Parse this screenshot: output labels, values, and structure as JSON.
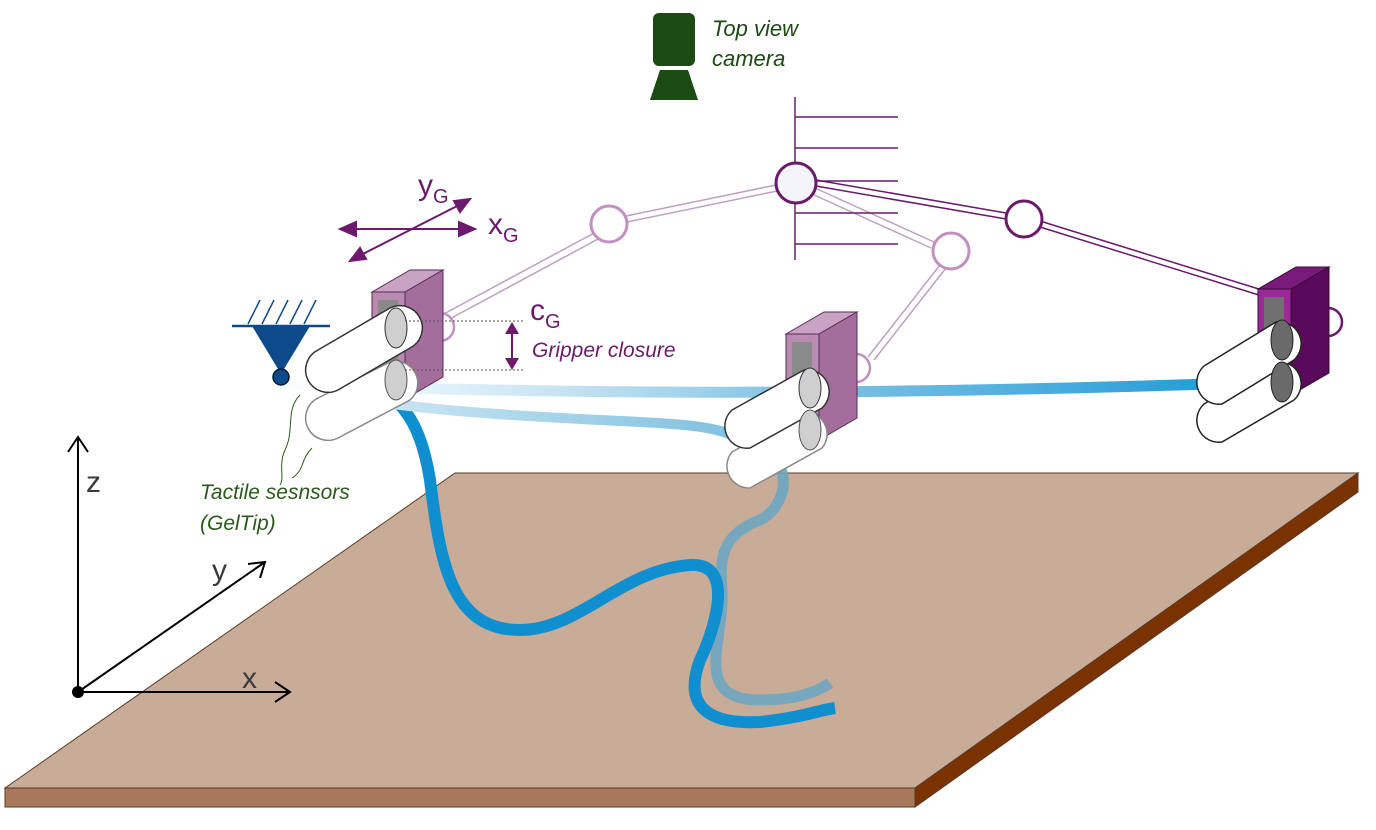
{
  "camera": {
    "label_line1": "Top view",
    "label_line2": "camera",
    "color": "#1b4a12"
  },
  "gripper_frame": {
    "y_label": "y",
    "y_sub": "G",
    "x_label": "x",
    "x_sub": "G",
    "color": "#6d1a6d"
  },
  "closure": {
    "c_label": "c",
    "c_sub": "G",
    "caption": "Gripper closure",
    "color": "#6d1a6d"
  },
  "tactile": {
    "line1": "Tactile sesnsors",
    "line2": "(GelTip)",
    "color": "#2a5a1a"
  },
  "world_axes": {
    "z": "z",
    "y": "y",
    "x": "x"
  },
  "colors": {
    "table_top": "#c9ac98",
    "table_front": "#a8785a",
    "table_side": "#7a3300",
    "cable": "#0f8fd0",
    "robot_link": "#b88ab8",
    "robot_link_dark": "#6a1a6a",
    "gripper_body": "#b07aa8",
    "gripper_body_dark": "#7a1a7a",
    "anchor": "#0d4a8a"
  }
}
